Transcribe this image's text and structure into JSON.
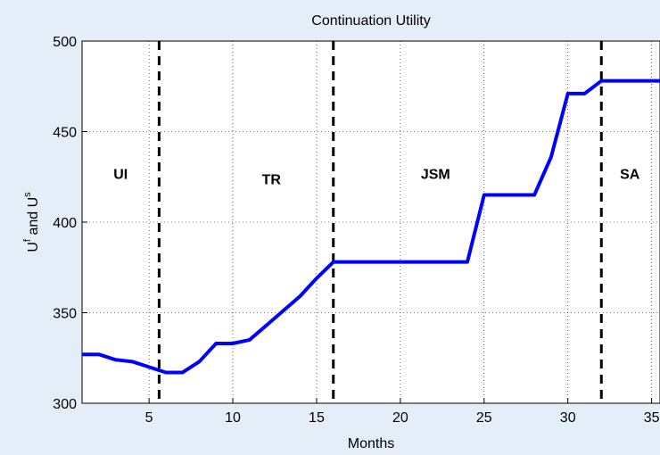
{
  "chart_data": {
    "type": "line",
    "title": "Continuation Utility",
    "xlabel": "Months",
    "ylabel": {
      "base1": "U",
      "sup1": "f",
      "mid": " and U",
      "sup2": "s"
    },
    "x": [
      1,
      2,
      3,
      4,
      5,
      6,
      7,
      8,
      9,
      10,
      11,
      12,
      13,
      14,
      15,
      16,
      17,
      18,
      19,
      20,
      21,
      22,
      23,
      24,
      25,
      26,
      27,
      28,
      29,
      30,
      31,
      32,
      33,
      34,
      35,
      36
    ],
    "series": [
      {
        "name": "Continuation Utility",
        "color": "#0000ff",
        "values": [
          327,
          327,
          324,
          323,
          320,
          317,
          317,
          323,
          333,
          333,
          335,
          343,
          351,
          359,
          369,
          378,
          378,
          378,
          378,
          378,
          378,
          378,
          378,
          378,
          415,
          415,
          415,
          415,
          436,
          471,
          471,
          478,
          478,
          478,
          478,
          478
        ]
      }
    ],
    "xlim": [
      1,
      35.5
    ],
    "xticks": [
      5,
      10,
      15,
      20,
      25,
      30,
      35
    ],
    "ylim": [
      300,
      500
    ],
    "yticks": [
      300,
      350,
      400,
      450,
      500
    ],
    "grid": true,
    "vlines": [
      5.6,
      16,
      32
    ],
    "annotations": [
      {
        "text": "UI",
        "x": 3.3,
        "y": 424
      },
      {
        "text": "TR",
        "x": 12.3,
        "y": 421
      },
      {
        "text": "JSM",
        "x": 22.1,
        "y": 424
      },
      {
        "text": "SA",
        "x": 33.7,
        "y": 424
      }
    ]
  }
}
